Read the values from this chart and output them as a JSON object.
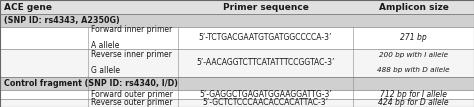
{
  "header_row": [
    "ACE gene",
    "Primer sequence",
    "Amplicon size"
  ],
  "section1": "(SNP ID: rs4343, A2350G)",
  "section2": "Control fragment (SNP ID: rs4340, I/D)",
  "row1_name1": "Forward inner primer",
  "row1_name2": "A allele",
  "row1_seq": "5’-TCTGACGAATGTGATGGCCCCA-3’",
  "row1_amp": "271 bp",
  "row2_name1": "Reverse inner primer",
  "row2_name2": "G allele",
  "row2_seq": "5’-AACAGGTCTTCATATTTCCGGTAC-3’",
  "row2_amp1": "200 bp with I allele",
  "row2_amp2": "488 bp with D allele",
  "row3_name": "Forward outer primer",
  "row3_seq": "5’-GAGGCTGAGATGGAAGGATTG-3’",
  "row3_amp": "712 bp for I allele",
  "row4_name": "Reverse outer primer",
  "row4_seq": "5’-GCTCTCCCAACACCACATTAC-3’",
  "row4_amp": "424 bp for D allele",
  "bg_header": "#e0e0e0",
  "bg_section": "#d0d0d0",
  "bg_white": "#ffffff",
  "bg_light": "#f5f5f5",
  "line_color": "#888888",
  "text_color": "#1a1a1a",
  "figure_bg": "#ffffff",
  "header_fs": 6.5,
  "body_fs": 5.5,
  "section_fs": 5.8
}
